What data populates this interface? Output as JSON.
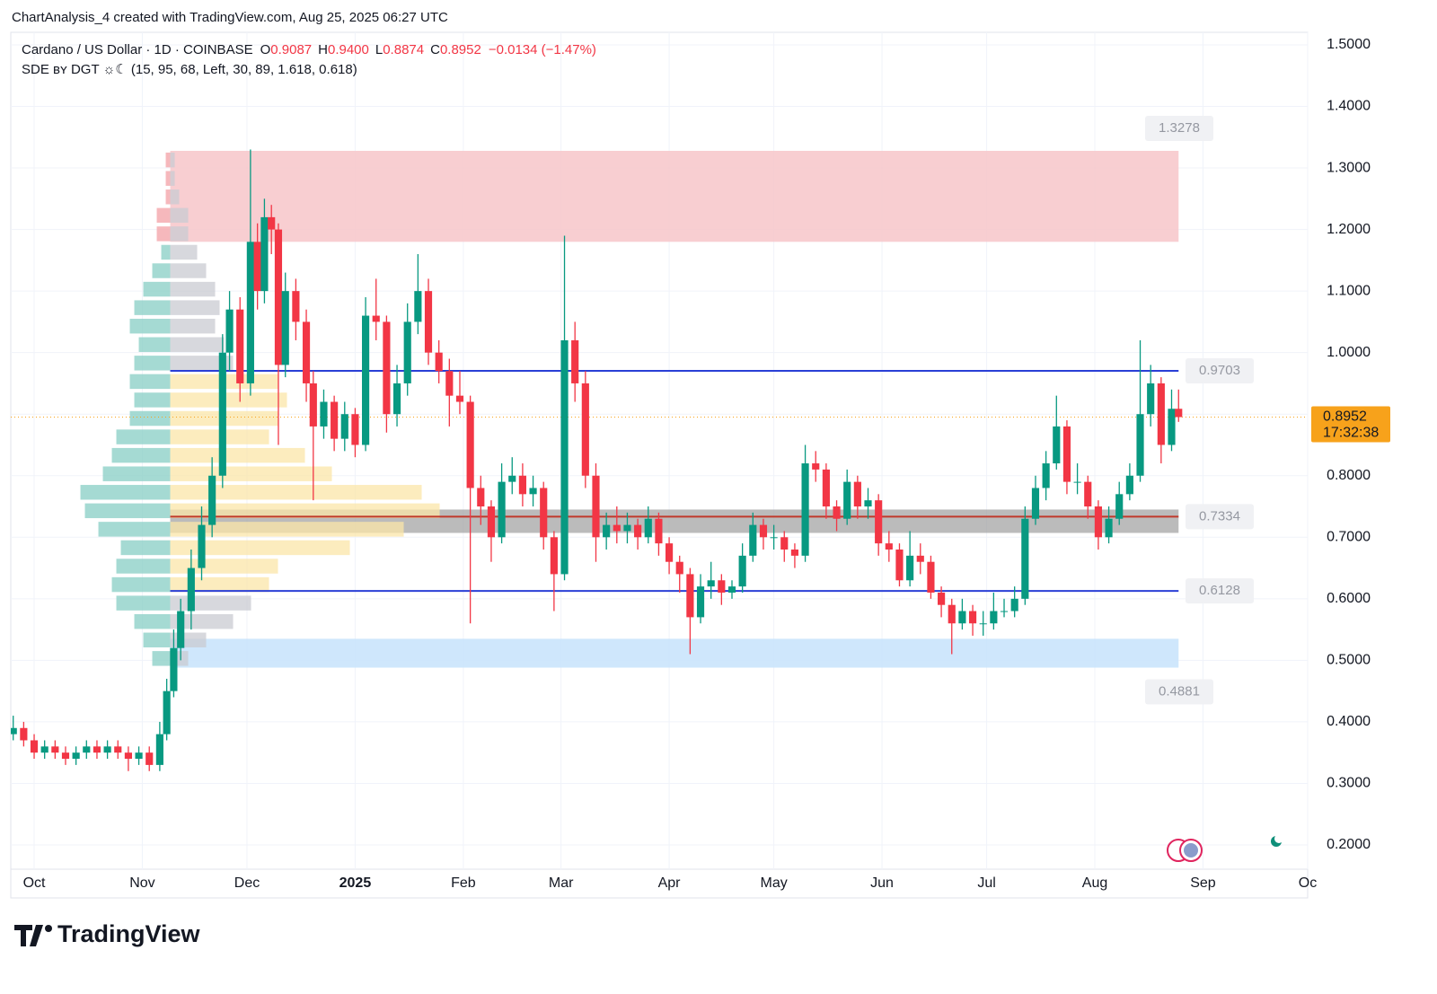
{
  "header": {
    "credit": "ChartAnalysis_4 created with TradingView.com, Aug 25, 2025 06:27 UTC"
  },
  "footer": {
    "brand": "TradingView"
  },
  "chart_data": {
    "type": "candlestick",
    "title": "Cardano / US Dollar · 1D · COINBASE",
    "ohlc_legend": [
      {
        "key": "O",
        "text": "0.9087"
      },
      {
        "key": "H",
        "text": "0.9400"
      },
      {
        "key": "L",
        "text": "0.8874"
      },
      {
        "key": "C",
        "text": "0.8952"
      }
    ],
    "change": "−0.0134 (−1.47%)",
    "indicator": "SDE ʙʏ DGT ☼☾ (15, 95, 68, Left, 30, 89, 1.618, 0.618)",
    "up_color": "#089981",
    "down_color": "#f23645",
    "x": [
      -6,
      -3,
      0,
      3,
      6,
      9,
      12,
      15,
      18,
      21,
      24,
      27,
      30,
      33,
      36,
      38,
      40,
      42,
      45,
      48,
      51,
      54,
      56,
      59,
      62,
      64,
      66,
      68,
      70,
      72,
      75,
      78,
      80,
      83,
      86,
      89,
      92,
      95,
      98,
      101,
      104,
      107,
      110,
      113,
      116,
      119,
      122,
      125,
      128,
      131,
      134,
      137,
      140,
      143,
      146,
      149,
      152,
      155,
      158,
      161,
      164,
      167,
      170,
      173,
      176,
      179,
      182,
      185,
      188,
      191,
      194,
      197,
      200,
      203,
      206,
      209,
      212,
      215,
      218,
      221,
      224,
      227,
      230,
      233,
      236,
      239,
      242,
      245,
      248,
      251,
      254,
      257,
      260,
      263,
      266,
      269,
      272,
      275,
      278,
      281,
      284,
      287,
      290,
      293,
      296,
      299,
      302,
      305,
      308,
      311,
      314,
      317,
      320,
      323,
      326,
      328
    ],
    "open": [
      0.38,
      0.39,
      0.37,
      0.35,
      0.36,
      0.35,
      0.34,
      0.35,
      0.36,
      0.35,
      0.36,
      0.35,
      0.34,
      0.35,
      0.33,
      0.38,
      0.45,
      0.52,
      0.58,
      0.65,
      0.72,
      0.8,
      1.0,
      1.07,
      0.95,
      1.18,
      1.1,
      1.22,
      1.2,
      0.98,
      1.1,
      1.05,
      0.95,
      0.88,
      0.92,
      0.86,
      0.9,
      0.85,
      1.06,
      1.05,
      0.9,
      0.95,
      1.05,
      1.1,
      1.0,
      0.97,
      0.93,
      0.92,
      0.78,
      0.75,
      0.7,
      0.79,
      0.8,
      0.77,
      0.78,
      0.7,
      0.64,
      1.02,
      0.95,
      0.8,
      0.7,
      0.72,
      0.71,
      0.72,
      0.7,
      0.73,
      0.69,
      0.66,
      0.64,
      0.57,
      0.62,
      0.63,
      0.61,
      0.62,
      0.67,
      0.72,
      0.7,
      0.7,
      0.68,
      0.67,
      0.82,
      0.81,
      0.75,
      0.73,
      0.79,
      0.75,
      0.76,
      0.69,
      0.68,
      0.63,
      0.67,
      0.66,
      0.61,
      0.59,
      0.56,
      0.58,
      0.56,
      0.56,
      0.58,
      0.58,
      0.6,
      0.73,
      0.78,
      0.82,
      0.88,
      0.79,
      0.79,
      0.75,
      0.7,
      0.73,
      0.77,
      0.8,
      0.9,
      0.95,
      0.85,
      0.9087
    ],
    "high": [
      0.41,
      0.4,
      0.38,
      0.37,
      0.37,
      0.36,
      0.36,
      0.37,
      0.37,
      0.37,
      0.37,
      0.36,
      0.36,
      0.36,
      0.4,
      0.47,
      0.55,
      0.6,
      0.68,
      0.75,
      0.83,
      1.03,
      1.1,
      1.09,
      1.33,
      1.21,
      1.25,
      1.24,
      1.21,
      1.13,
      1.12,
      1.07,
      0.97,
      0.94,
      0.93,
      0.92,
      0.91,
      1.09,
      1.12,
      1.06,
      0.98,
      1.08,
      1.16,
      1.12,
      1.02,
      0.99,
      0.97,
      0.93,
      0.8,
      0.76,
      0.82,
      0.83,
      0.82,
      0.8,
      0.79,
      0.71,
      1.19,
      1.05,
      0.97,
      0.82,
      0.74,
      0.75,
      0.74,
      0.73,
      0.75,
      0.74,
      0.7,
      0.67,
      0.65,
      0.64,
      0.66,
      0.64,
      0.63,
      0.69,
      0.74,
      0.73,
      0.72,
      0.71,
      0.69,
      0.85,
      0.84,
      0.82,
      0.76,
      0.81,
      0.8,
      0.78,
      0.77,
      0.71,
      0.69,
      0.71,
      0.69,
      0.67,
      0.62,
      0.6,
      0.6,
      0.59,
      0.58,
      0.61,
      0.6,
      0.62,
      0.75,
      0.8,
      0.84,
      0.93,
      0.89,
      0.82,
      0.8,
      0.76,
      0.75,
      0.79,
      0.82,
      1.02,
      0.98,
      0.96,
      0.94,
      0.94
    ],
    "low": [
      0.37,
      0.36,
      0.34,
      0.34,
      0.34,
      0.33,
      0.33,
      0.34,
      0.34,
      0.34,
      0.34,
      0.32,
      0.33,
      0.32,
      0.32,
      0.37,
      0.44,
      0.5,
      0.55,
      0.63,
      0.7,
      0.78,
      0.97,
      0.92,
      0.93,
      1.07,
      1.08,
      1.16,
      0.85,
      0.96,
      1.02,
      0.92,
      0.76,
      0.86,
      0.84,
      0.84,
      0.83,
      0.84,
      1.02,
      0.87,
      0.88,
      0.93,
      1.03,
      0.98,
      0.95,
      0.88,
      0.9,
      0.56,
      0.72,
      0.66,
      0.69,
      0.77,
      0.75,
      0.75,
      0.68,
      0.58,
      0.63,
      0.92,
      0.78,
      0.66,
      0.68,
      0.69,
      0.69,
      0.68,
      0.69,
      0.67,
      0.64,
      0.61,
      0.51,
      0.56,
      0.6,
      0.59,
      0.6,
      0.61,
      0.66,
      0.68,
      0.68,
      0.66,
      0.65,
      0.66,
      0.79,
      0.73,
      0.71,
      0.72,
      0.73,
      0.73,
      0.67,
      0.66,
      0.62,
      0.62,
      0.64,
      0.6,
      0.57,
      0.51,
      0.55,
      0.54,
      0.54,
      0.55,
      0.57,
      0.57,
      0.59,
      0.72,
      0.76,
      0.81,
      0.77,
      0.77,
      0.73,
      0.68,
      0.69,
      0.72,
      0.76,
      0.79,
      0.88,
      0.82,
      0.84,
      0.8874
    ],
    "close": [
      0.39,
      0.37,
      0.35,
      0.36,
      0.35,
      0.34,
      0.35,
      0.36,
      0.35,
      0.36,
      0.35,
      0.34,
      0.35,
      0.33,
      0.38,
      0.45,
      0.52,
      0.58,
      0.65,
      0.72,
      0.8,
      1.0,
      1.07,
      0.95,
      1.18,
      1.1,
      1.22,
      1.2,
      0.98,
      1.1,
      1.05,
      0.95,
      0.88,
      0.92,
      0.86,
      0.9,
      0.85,
      1.06,
      1.05,
      0.9,
      0.95,
      1.05,
      1.1,
      1.0,
      0.97,
      0.93,
      0.92,
      0.78,
      0.75,
      0.7,
      0.79,
      0.8,
      0.77,
      0.78,
      0.7,
      0.64,
      1.02,
      0.95,
      0.8,
      0.7,
      0.72,
      0.71,
      0.72,
      0.7,
      0.73,
      0.69,
      0.66,
      0.64,
      0.57,
      0.62,
      0.63,
      0.61,
      0.62,
      0.67,
      0.72,
      0.7,
      0.7,
      0.68,
      0.67,
      0.82,
      0.81,
      0.75,
      0.73,
      0.79,
      0.75,
      0.76,
      0.69,
      0.68,
      0.63,
      0.67,
      0.66,
      0.61,
      0.59,
      0.56,
      0.58,
      0.56,
      0.56,
      0.58,
      0.58,
      0.6,
      0.73,
      0.78,
      0.82,
      0.88,
      0.79,
      0.79,
      0.75,
      0.7,
      0.73,
      0.77,
      0.8,
      0.9,
      0.95,
      0.85,
      0.9087,
      0.8952
    ],
    "xlim": [
      -6.7,
      365
    ],
    "xticks": [
      {
        "value": 0,
        "label": "Oct"
      },
      {
        "value": 31,
        "label": "Nov"
      },
      {
        "value": 61,
        "label": "Dec"
      },
      {
        "value": 92,
        "label": "2025"
      },
      {
        "value": 123,
        "label": "Feb"
      },
      {
        "value": 151,
        "label": "Mar"
      },
      {
        "value": 182,
        "label": "Apr"
      },
      {
        "value": 212,
        "label": "May"
      },
      {
        "value": 243,
        "label": "Jun"
      },
      {
        "value": 273,
        "label": "Jul"
      },
      {
        "value": 304,
        "label": "Aug"
      },
      {
        "value": 335,
        "label": "Sep"
      },
      {
        "value": 365,
        "label": "Oc"
      }
    ],
    "ylim": [
      0.1606,
      1.5204
    ],
    "yticks": [
      {
        "value": 0.2,
        "label": "0.2000"
      },
      {
        "value": 0.3,
        "label": "0.3000"
      },
      {
        "value": 0.4,
        "label": "0.4000"
      },
      {
        "value": 0.5,
        "label": "0.5000"
      },
      {
        "value": 0.6,
        "label": "0.6000"
      },
      {
        "value": 0.7,
        "label": "0.7000"
      },
      {
        "value": 0.8,
        "label": "0.8000"
      },
      {
        "value": 0.9,
        "label": "0.9000"
      },
      {
        "value": 1.0,
        "label": "1.0000"
      },
      {
        "value": 1.1,
        "label": "1.1000"
      },
      {
        "value": 1.2,
        "label": "1.2000"
      },
      {
        "value": 1.3,
        "label": "1.3000"
      },
      {
        "value": 1.4,
        "label": "1.4000"
      },
      {
        "value": 1.5,
        "label": "1.5000"
      }
    ],
    "grid": true,
    "zones": [
      {
        "from": 1.18,
        "to": 1.3278,
        "start": 39,
        "end": 328,
        "color": "#f7c6c9"
      },
      {
        "from": 0.4881,
        "to": 0.535,
        "start": 39,
        "end": 328,
        "color": "#c7e3fb"
      },
      {
        "from": 0.707,
        "to": 0.745,
        "start": 39,
        "end": 328,
        "color": "#9e9e9e"
      }
    ],
    "levels": [
      {
        "value": 0.9703,
        "color": "#2a3fd6"
      },
      {
        "value": 0.7334,
        "color": "#c0392b"
      },
      {
        "value": 0.6128,
        "color": "#2a3fd6"
      }
    ],
    "level_tags": [
      1.3278,
      0.9703,
      0.7334,
      0.6128,
      0.4881
    ],
    "last_price": 0.8952,
    "countdown": "17:32:38",
    "last_color": "#f7a21b",
    "volume_profile": {
      "anchor": 39,
      "prices": [
        0.5,
        0.53,
        0.56,
        0.59,
        0.62,
        0.65,
        0.68,
        0.71,
        0.74,
        0.77,
        0.8,
        0.83,
        0.86,
        0.89,
        0.92,
        0.95,
        0.98,
        1.01,
        1.04,
        1.07,
        1.1,
        1.13,
        1.16,
        1.19,
        1.22,
        1.25,
        1.28,
        1.31
      ],
      "left": [
        20,
        30,
        40,
        60,
        65,
        60,
        55,
        80,
        95,
        100,
        75,
        65,
        60,
        45,
        40,
        45,
        40,
        35,
        45,
        40,
        30,
        20,
        10,
        15,
        15,
        5,
        5,
        5
      ],
      "right": [
        20,
        40,
        70,
        90,
        110,
        120,
        200,
        260,
        300,
        280,
        180,
        150,
        110,
        120,
        130,
        120,
        70,
        60,
        50,
        55,
        50,
        40,
        30,
        20,
        20,
        10,
        5,
        5
      ]
    }
  }
}
